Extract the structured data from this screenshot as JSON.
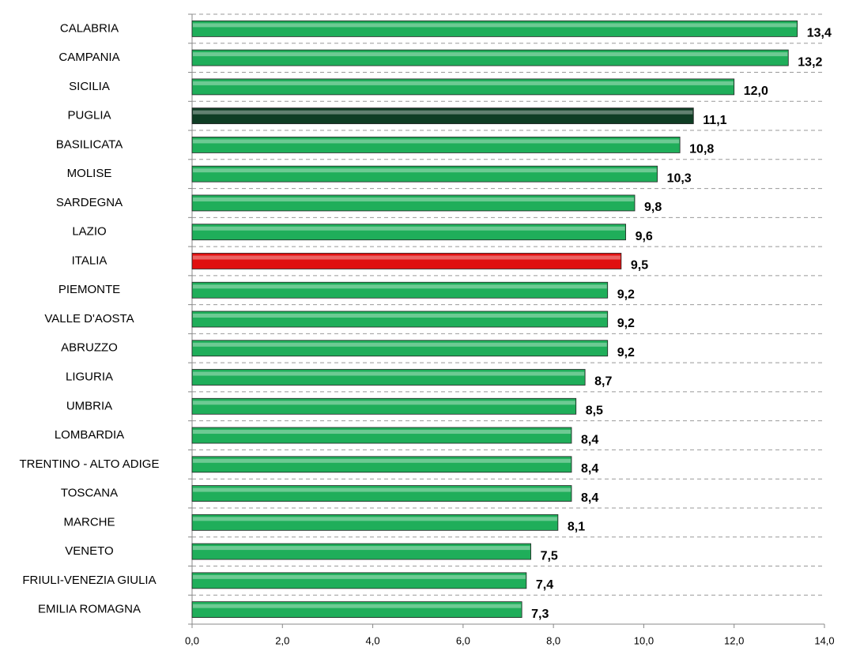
{
  "chart_data": {
    "type": "barh",
    "categories": [
      "CALABRIA",
      "CAMPANIA",
      "SICILIA",
      "PUGLIA",
      "BASILICATA",
      "MOLISE",
      "SARDEGNA",
      "LAZIO",
      "ITALIA",
      "PIEMONTE",
      "VALLE D'AOSTA",
      "ABRUZZO",
      "LIGURIA",
      "UMBRIA",
      "LOMBARDIA",
      "TRENTINO - ALTO ADIGE",
      "TOSCANA",
      "MARCHE",
      "VENETO",
      "FRIULI-VENEZIA GIULIA",
      "EMILIA ROMAGNA"
    ],
    "values": [
      13.4,
      13.2,
      12.0,
      11.1,
      10.8,
      10.3,
      9.8,
      9.6,
      9.5,
      9.2,
      9.2,
      9.2,
      8.7,
      8.5,
      8.4,
      8.4,
      8.4,
      8.1,
      7.5,
      7.4,
      7.3
    ],
    "value_labels": [
      "13,4",
      "13,2",
      "12,0",
      "11,1",
      "10,8",
      "10,3",
      "9,8",
      "9,6",
      "9,5",
      "9,2",
      "9,2",
      "9,2",
      "8,7",
      "8,5",
      "8,4",
      "8,4",
      "8,4",
      "8,1",
      "7,5",
      "7,4",
      "7,3"
    ],
    "colors": [
      "#1fae5a",
      "#1fae5a",
      "#1fae5a",
      "#0f3d24",
      "#1fae5a",
      "#1fae5a",
      "#1fae5a",
      "#1fae5a",
      "#e01010",
      "#1fae5a",
      "#1fae5a",
      "#1fae5a",
      "#1fae5a",
      "#1fae5a",
      "#1fae5a",
      "#1fae5a",
      "#1fae5a",
      "#1fae5a",
      "#1fae5a",
      "#1fae5a",
      "#1fae5a"
    ],
    "xlim": [
      0,
      14
    ],
    "xticks": [
      {
        "value": 0,
        "label": "0,0"
      },
      {
        "value": 2,
        "label": "2,0"
      },
      {
        "value": 4,
        "label": "4,0"
      },
      {
        "value": 6,
        "label": "6,0"
      },
      {
        "value": 8,
        "label": "8,0"
      },
      {
        "value": 10,
        "label": "10,0"
      },
      {
        "value": 12,
        "label": "12,0"
      },
      {
        "value": 14,
        "label": "14,0"
      }
    ],
    "grid": true
  }
}
